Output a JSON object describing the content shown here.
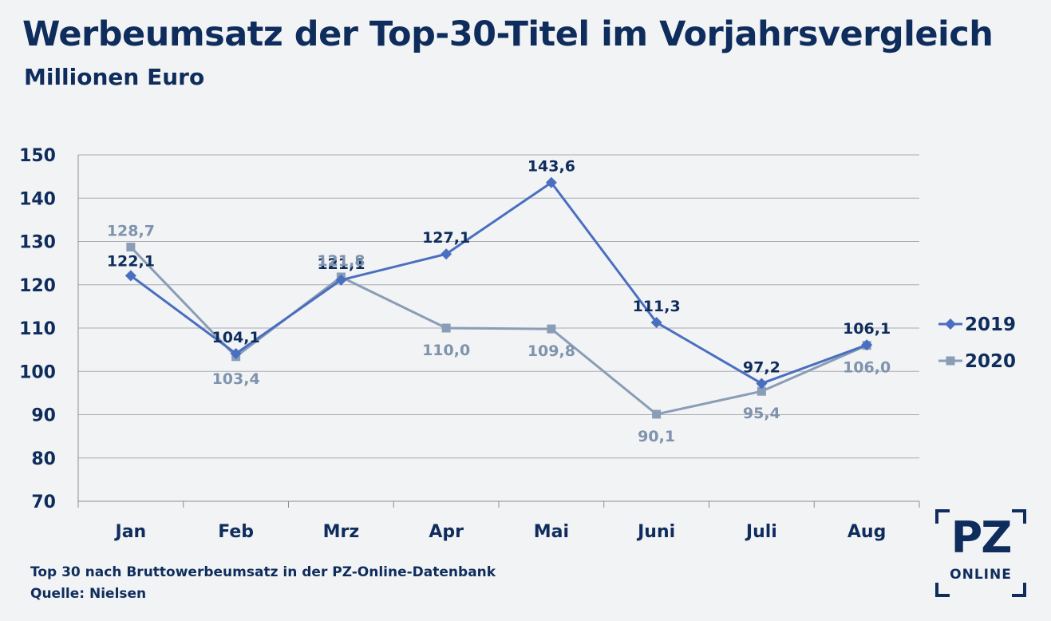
{
  "header": {
    "title": "Werbeumsatz der Top-30-Titel im Vorjahrsvergleich",
    "subtitle": "Millionen Euro"
  },
  "footer": {
    "note": "Top 30 nach Bruttowerbeumsatz in der PZ-Online-Datenbank",
    "source": "Quelle: Nielsen"
  },
  "logo": {
    "main": "PZ",
    "sub": "ONLINE"
  },
  "chart_data": {
    "type": "line",
    "title": "Werbeumsatz der Top-30-Titel im Vorjahrsvergleich",
    "subtitle": "Millionen Euro",
    "categories": [
      "Jan",
      "Feb",
      "Mrz",
      "Apr",
      "Mai",
      "Juni",
      "Juli",
      "Aug"
    ],
    "ylim": [
      70,
      150
    ],
    "yticks": [
      70,
      80,
      90,
      100,
      110,
      120,
      130,
      140,
      150
    ],
    "grid": true,
    "legend": "right",
    "series": [
      {
        "name": "2019",
        "color": "#4a6fc0",
        "marker": "diamond",
        "label_color": "#0f2d5c",
        "values": [
          122.1,
          104.1,
          121.1,
          127.1,
          143.6,
          111.3,
          97.2,
          106.1
        ],
        "labels": [
          "122,1",
          "104,1",
          "121,1",
          "127,1",
          "143,6",
          "111,3",
          "97,2",
          "106,1"
        ]
      },
      {
        "name": "2020",
        "color": "#8a9db6",
        "marker": "square",
        "label_color": "#7f93ad",
        "values": [
          128.7,
          103.4,
          121.8,
          110.0,
          109.8,
          90.1,
          95.4,
          106.0
        ],
        "labels": [
          "128,7",
          "103,4",
          "121,8",
          "110,0",
          "109,8",
          "90,1",
          "95,4",
          "106,0"
        ]
      }
    ]
  }
}
